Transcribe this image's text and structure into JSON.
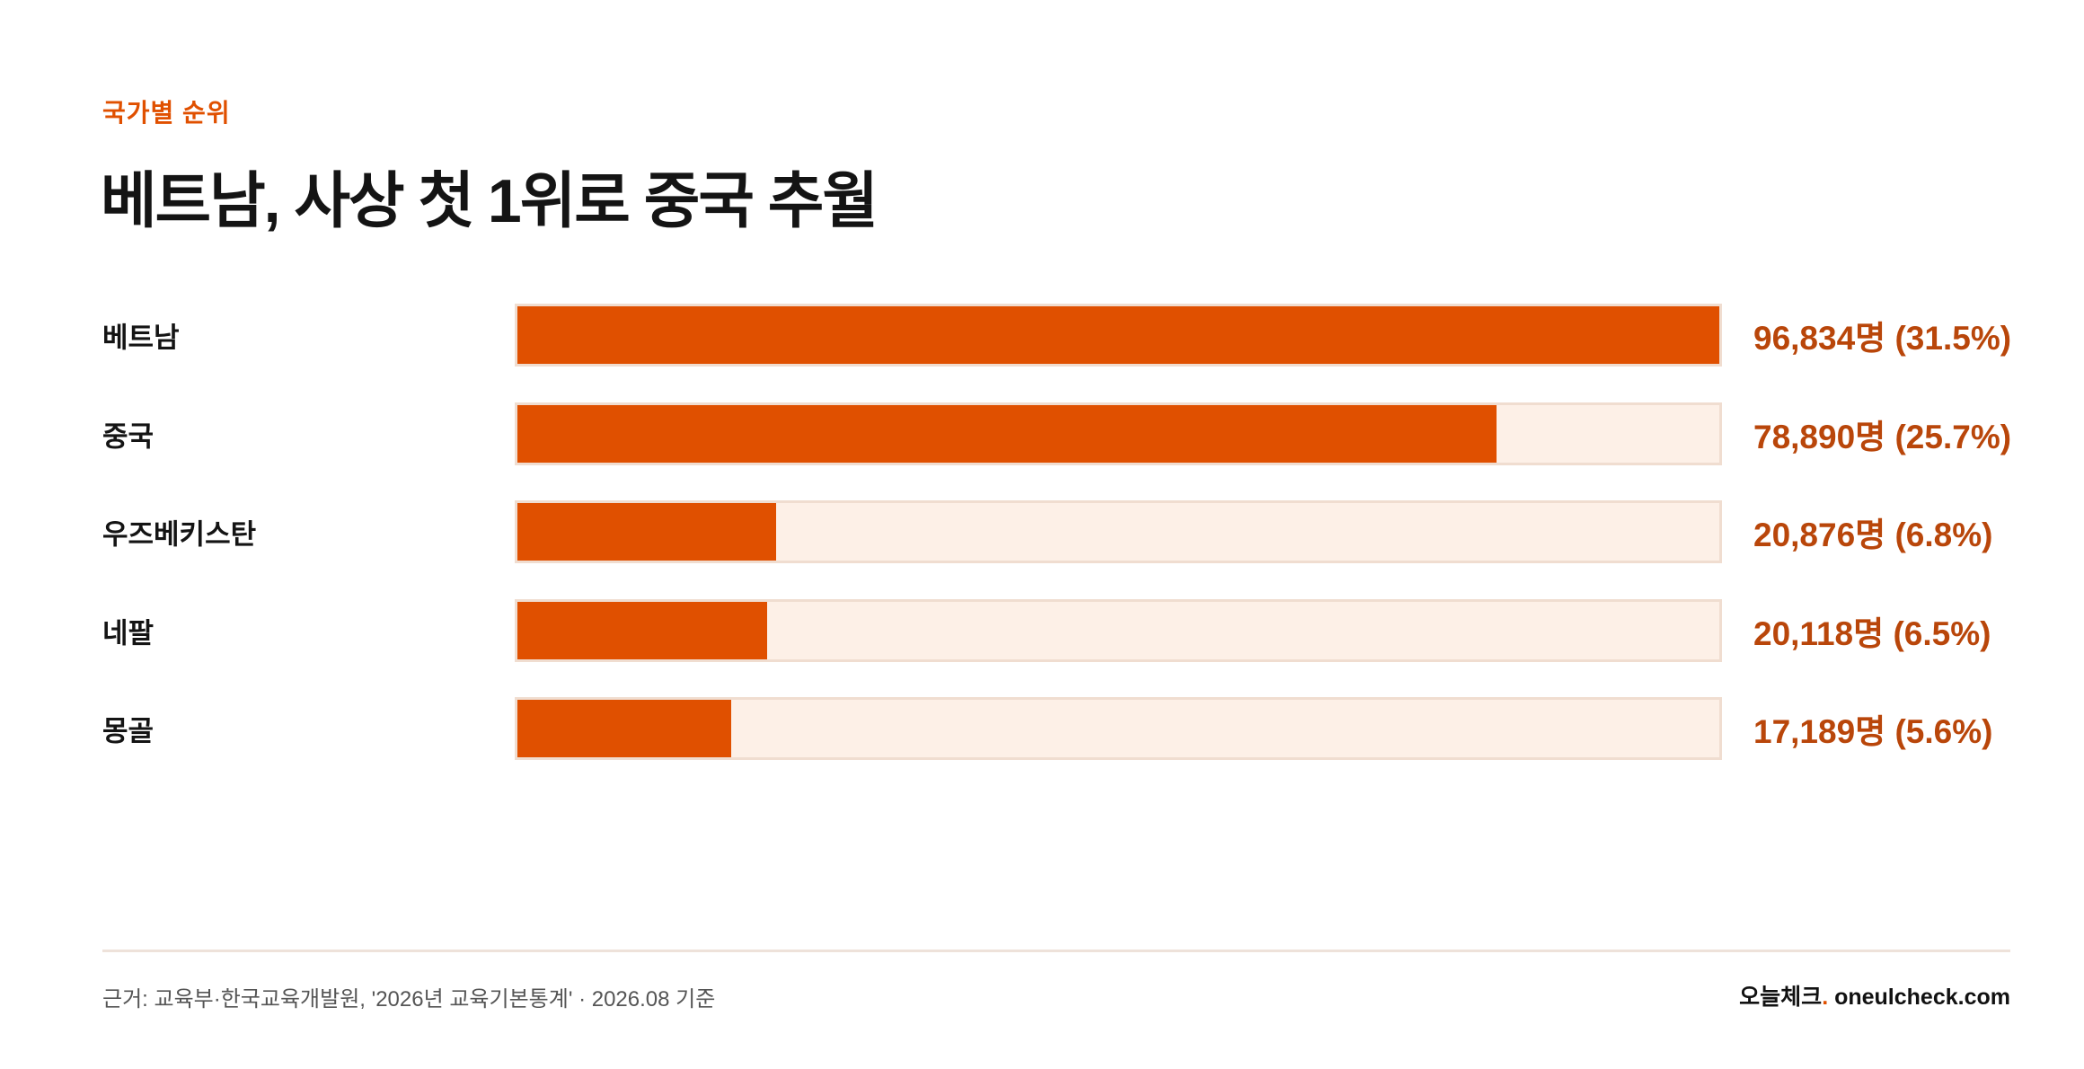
{
  "chart_data": {
    "type": "bar",
    "orientation": "horizontal",
    "kicker": "국가별 순위",
    "title": "베트남, 사상 첫 1위로 중국 추월",
    "categories": [
      "베트남",
      "중국",
      "우즈베키스탄",
      "네팔",
      "몽골"
    ],
    "values": [
      96834,
      78890,
      20876,
      20118,
      17189
    ],
    "value_labels": [
      "96,834명 (31.5%)",
      "78,890명 (25.7%)",
      "20,876명 (6.8%)",
      "20,118명 (6.5%)",
      "17,189명 (5.6%)"
    ],
    "color": "#e05000",
    "track_color": "#fdf0e7",
    "source": "근거: 교육부·한국교육개발원, '2026년 교육기본통계' · 2026.08 기준",
    "brand_name": "오늘체크",
    "brand_dot": ".",
    "brand_site": "oneulcheck.com"
  }
}
